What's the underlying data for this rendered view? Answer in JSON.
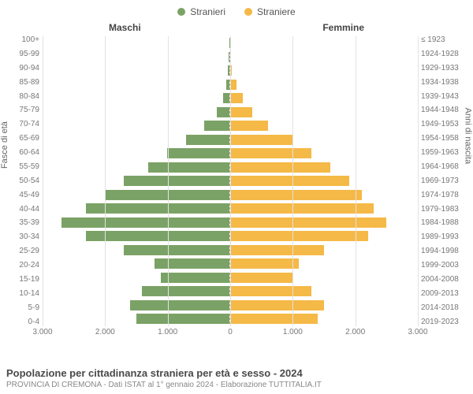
{
  "legend": {
    "male": {
      "label": "Stranieri",
      "color": "#7ba266"
    },
    "female": {
      "label": "Straniere",
      "color": "#f5b947"
    }
  },
  "side_titles": {
    "male": "Maschi",
    "female": "Femmine"
  },
  "y_axis_left_title": "Fasce di età",
  "y_axis_right_title": "Anni di nascita",
  "chart": {
    "type": "population-pyramid",
    "x_max": 3000,
    "x_ticks_left": [
      -3000,
      -2000,
      -1000,
      0
    ],
    "x_ticks_right": [
      0,
      1000,
      2000,
      3000
    ],
    "x_tick_labels": [
      "3.000",
      "2.000",
      "1.000",
      "0",
      "1.000",
      "2.000",
      "3.000"
    ],
    "bar_color_m": "#7ba266",
    "bar_color_f": "#f5b947",
    "grid_color": "#e2e2e2",
    "bg_color": "#ffffff",
    "rows": [
      {
        "age": "100+",
        "birth": "≤ 1923",
        "m": 5,
        "f": 5
      },
      {
        "age": "95-99",
        "birth": "1924-1928",
        "m": 10,
        "f": 15
      },
      {
        "age": "90-94",
        "birth": "1929-1933",
        "m": 20,
        "f": 30
      },
      {
        "age": "85-89",
        "birth": "1934-1938",
        "m": 50,
        "f": 100
      },
      {
        "age": "80-84",
        "birth": "1939-1943",
        "m": 100,
        "f": 200
      },
      {
        "age": "75-79",
        "birth": "1944-1948",
        "m": 200,
        "f": 350
      },
      {
        "age": "70-74",
        "birth": "1949-1953",
        "m": 400,
        "f": 600
      },
      {
        "age": "65-69",
        "birth": "1954-1958",
        "m": 700,
        "f": 1000
      },
      {
        "age": "60-64",
        "birth": "1959-1963",
        "m": 1000,
        "f": 1300
      },
      {
        "age": "55-59",
        "birth": "1964-1968",
        "m": 1300,
        "f": 1600
      },
      {
        "age": "50-54",
        "birth": "1969-1973",
        "m": 1700,
        "f": 1900
      },
      {
        "age": "45-49",
        "birth": "1974-1978",
        "m": 2000,
        "f": 2100
      },
      {
        "age": "40-44",
        "birth": "1979-1983",
        "m": 2300,
        "f": 2300
      },
      {
        "age": "35-39",
        "birth": "1984-1988",
        "m": 2700,
        "f": 2500
      },
      {
        "age": "30-34",
        "birth": "1989-1993",
        "m": 2300,
        "f": 2200
      },
      {
        "age": "25-29",
        "birth": "1994-1998",
        "m": 1700,
        "f": 1500
      },
      {
        "age": "20-24",
        "birth": "1999-2003",
        "m": 1200,
        "f": 1100
      },
      {
        "age": "15-19",
        "birth": "2004-2008",
        "m": 1100,
        "f": 1000
      },
      {
        "age": "10-14",
        "birth": "2009-2013",
        "m": 1400,
        "f": 1300
      },
      {
        "age": "5-9",
        "birth": "2014-2018",
        "m": 1600,
        "f": 1500
      },
      {
        "age": "0-4",
        "birth": "2019-2023",
        "m": 1500,
        "f": 1400
      }
    ]
  },
  "footer": {
    "title": "Popolazione per cittadinanza straniera per età e sesso - 2024",
    "subtitle": "PROVINCIA DI CREMONA - Dati ISTAT al 1° gennaio 2024 - Elaborazione TUTTITALIA.IT"
  }
}
